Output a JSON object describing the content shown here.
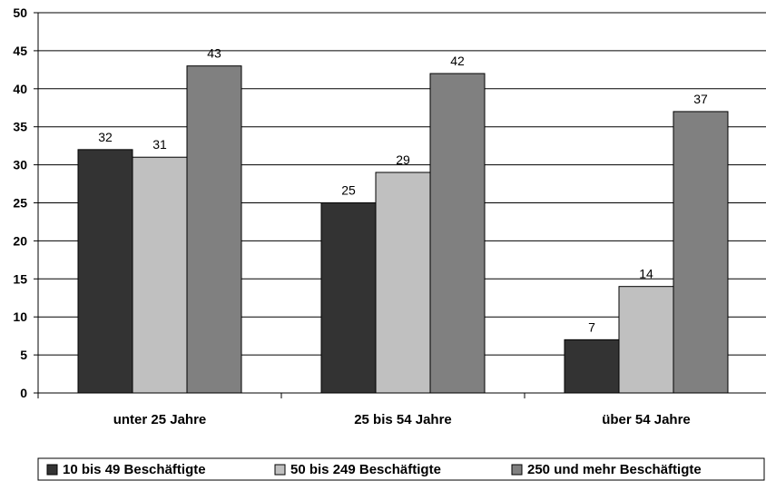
{
  "chart_data": {
    "type": "bar",
    "categories": [
      "unter 25 Jahre",
      "25 bis 54 Jahre",
      "über 54 Jahre"
    ],
    "series": [
      {
        "name": "10 bis 49 Beschäftigte",
        "values": [
          32,
          25,
          7
        ],
        "color": "#333333"
      },
      {
        "name": "50 bis 249 Beschäftigte",
        "values": [
          31,
          29,
          14
        ],
        "color": "#c0c0c0"
      },
      {
        "name": "250 und mehr Beschäftigte",
        "values": [
          43,
          42,
          37
        ],
        "color": "#808080"
      }
    ],
    "ylim": [
      0,
      50
    ],
    "yticks": [
      0,
      5,
      10,
      15,
      20,
      25,
      30,
      35,
      40,
      45,
      50
    ],
    "grid": true,
    "legend_position": "bottom",
    "data_labels": true
  }
}
